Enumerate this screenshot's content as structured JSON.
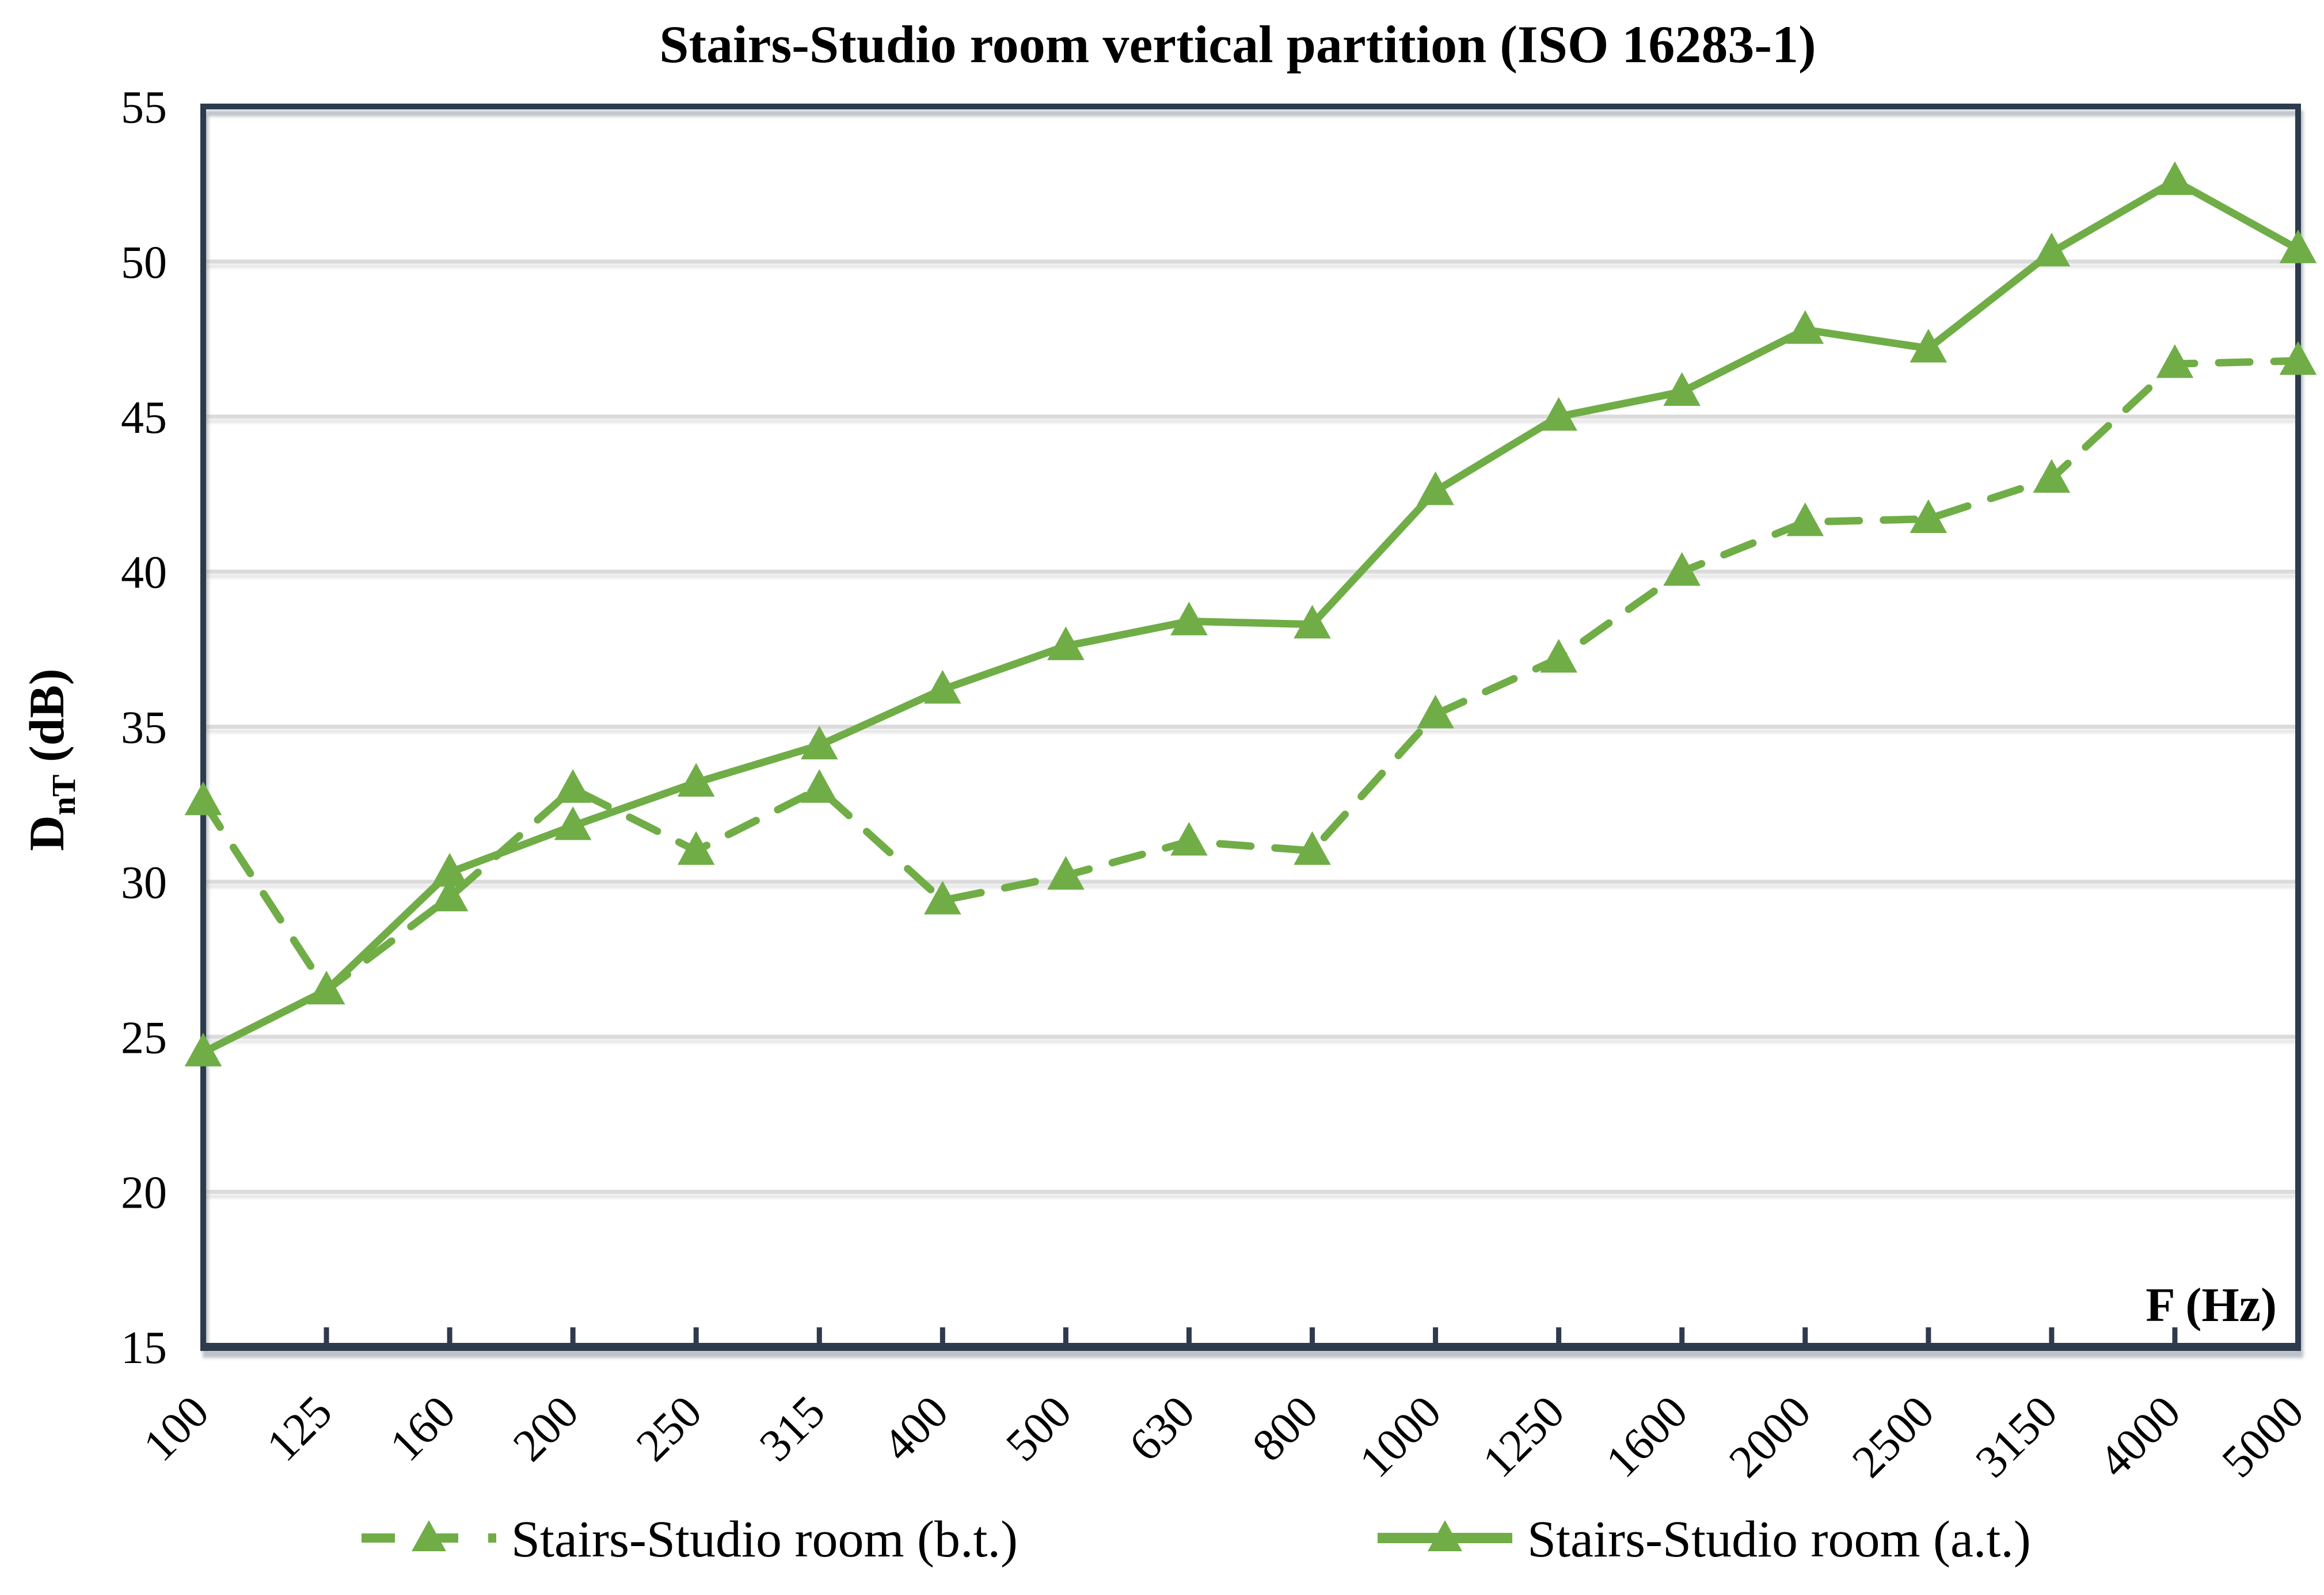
{
  "figure": {
    "title": "Stairs-Studio room vertical partition (ISO 16283-1)"
  },
  "chart_data": {
    "type": "line",
    "title": "Stairs-Studio room vertical partition (ISO 16283-1)",
    "xlabel": "F (Hz)",
    "ylabel": "DnT (dB)",
    "ylabel_parts": {
      "main": "D",
      "subscript": "nT",
      "suffix": " (dB)"
    },
    "categories": [
      "100",
      "125",
      "160",
      "200",
      "250",
      "315",
      "400",
      "500",
      "630",
      "800",
      "1000",
      "1250",
      "1600",
      "2000",
      "2500",
      "3150",
      "4000",
      "5000"
    ],
    "series": [
      {
        "name": "Stairs-Studio room (b.t.)",
        "style": "dashed",
        "marker": "triangle",
        "values": [
          32.6,
          26.5,
          29.5,
          33.0,
          31.0,
          33.0,
          29.4,
          30.2,
          31.3,
          31.0,
          35.4,
          37.2,
          40.0,
          41.6,
          41.7,
          43.0,
          46.7,
          46.8
        ]
      },
      {
        "name": "Stairs-Studio room (a.t.)",
        "style": "solid",
        "marker": "triangle",
        "values": [
          24.5,
          26.5,
          30.3,
          31.8,
          33.2,
          34.4,
          36.2,
          37.6,
          38.4,
          38.3,
          42.6,
          45.0,
          45.8,
          47.8,
          47.2,
          50.3,
          52.6,
          50.4
        ]
      }
    ],
    "ylim": [
      15,
      55
    ],
    "ytick_step": 5,
    "yticks": [
      "15",
      "20",
      "25",
      "30",
      "35",
      "40",
      "45",
      "50",
      "55"
    ],
    "grid": "horizontal",
    "legend_position": "bottom",
    "colors": {
      "series_green": "#70AD47",
      "axis": "#2F3A4D",
      "gridline": "#DBDBDB",
      "text": "#000000",
      "background": "#FFFFFF"
    }
  }
}
